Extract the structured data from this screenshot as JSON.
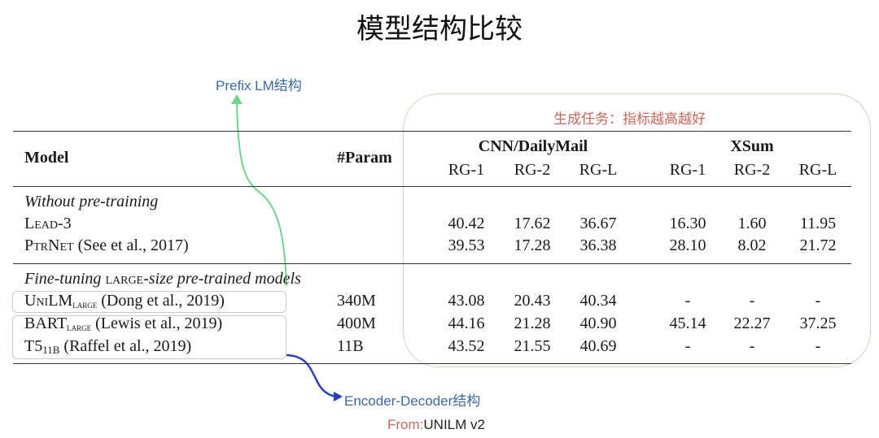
{
  "title": "模型结构比较",
  "annotations": {
    "prefix_lm": "Prefix LM结构",
    "generation_task": "生成任务：指标越高越好",
    "encoder_decoder": "Encoder-Decoder结构",
    "source_prefix": "From:",
    "source_name": "UNILM v2",
    "colors": {
      "arrow_prefix": "#6fd68f",
      "arrow_encdec": "#2a3fc0",
      "note_blue": "#3b6a9c",
      "note_red": "#c4685a"
    }
  },
  "table": {
    "headers": {
      "model": "Model",
      "param": "#Param",
      "group1": "CNN/DailyMail",
      "group2": "XSum",
      "metrics": [
        "RG-1",
        "RG-2",
        "RG-L",
        "RG-1",
        "RG-2",
        "RG-L"
      ]
    },
    "sections": [
      {
        "label": "Without pre-training",
        "rows": [
          {
            "name": "Lead-3",
            "sub": "",
            "cite": "",
            "param": "",
            "values": [
              "40.42",
              "17.62",
              "36.67",
              "16.30",
              "1.60",
              "11.95"
            ]
          },
          {
            "name": "PtrNet",
            "sub": "",
            "cite": " (See et al., 2017)",
            "param": "",
            "values": [
              "39.53",
              "17.28",
              "36.38",
              "28.10",
              "8.02",
              "21.72"
            ]
          }
        ]
      },
      {
        "label_pre": "Fine-tuning ",
        "label_sc": "large",
        "label_post": "-size pre-trained models",
        "rows": [
          {
            "name": "UniLM",
            "sub": "large",
            "cite": " (Dong et al., 2019)",
            "param": "340M",
            "values": [
              "43.08",
              "20.43",
              "40.34",
              "-",
              "-",
              "-"
            ]
          },
          {
            "name": "BART",
            "sub": "large",
            "cite": " (Lewis et al., 2019)",
            "param": "400M",
            "values": [
              "44.16",
              "21.28",
              "40.90",
              "45.14",
              "22.27",
              "37.25"
            ]
          },
          {
            "name": "T5",
            "sub": "11B",
            "cite": " (Raffel et al., 2019)",
            "param": "11B",
            "values": [
              "43.52",
              "21.55",
              "40.69",
              "-",
              "-",
              "-"
            ]
          }
        ]
      }
    ]
  }
}
